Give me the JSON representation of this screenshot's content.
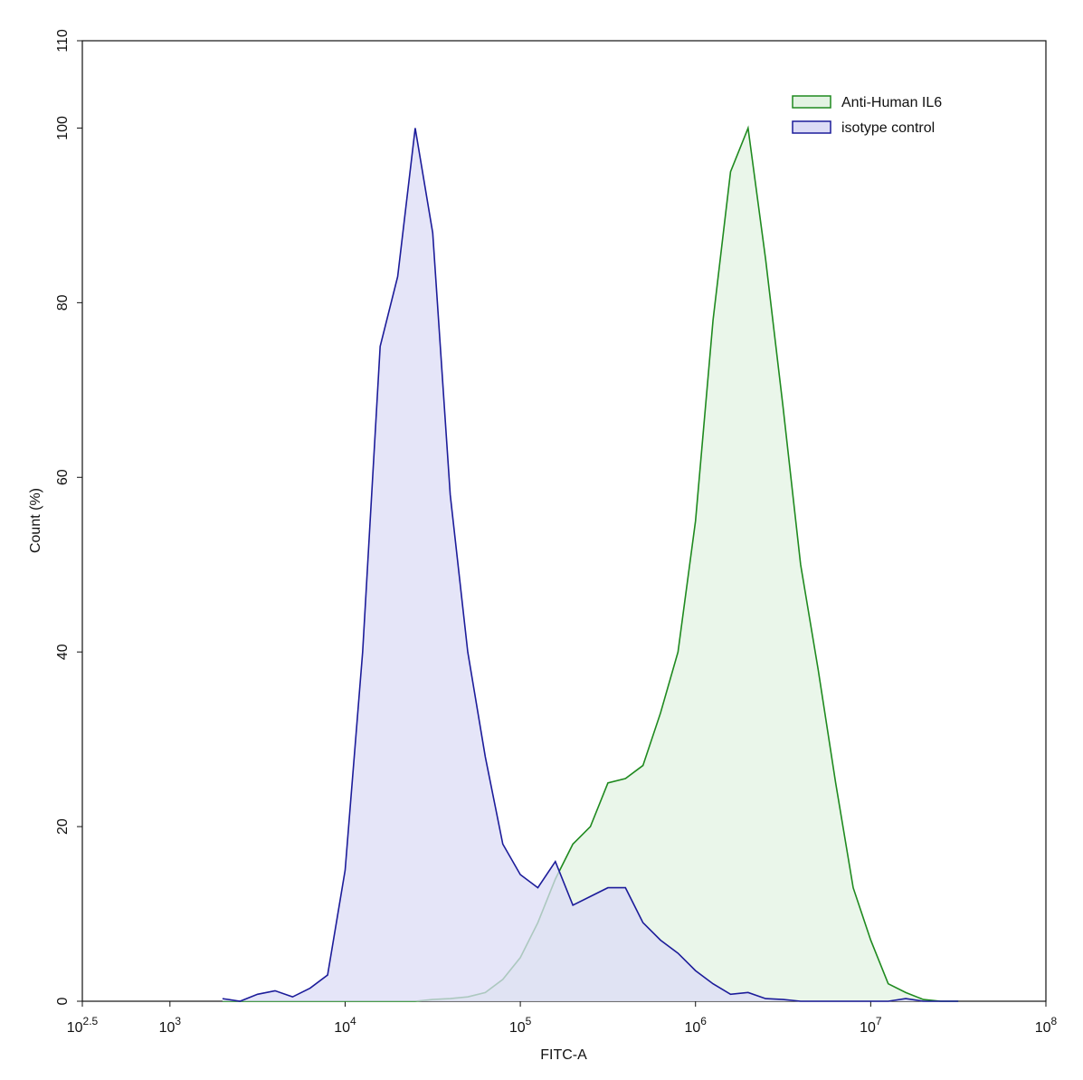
{
  "chart_data": {
    "type": "histogram-area",
    "xlabel": "FITC-A",
    "ylabel": "Count  (%)",
    "xscale": "log",
    "xlim": [
      316.23,
      100000000
    ],
    "xticks": [
      {
        "value": 316.23,
        "label": "10",
        "exponent": "2.5"
      },
      {
        "value": 1000,
        "label": "10",
        "exponent": "3"
      },
      {
        "value": 10000,
        "label": "10",
        "exponent": "4"
      },
      {
        "value": 100000,
        "label": "10",
        "exponent": "5"
      },
      {
        "value": 1000000,
        "label": "10",
        "exponent": "6"
      },
      {
        "value": 10000000,
        "label": "10",
        "exponent": "7"
      },
      {
        "value": 100000000,
        "label": "10",
        "exponent": "8"
      }
    ],
    "ylim": [
      0,
      110
    ],
    "yticks": [
      0,
      20,
      40,
      60,
      80,
      100,
      110
    ],
    "grid": false,
    "legend": "upper right",
    "x": [
      1995,
      2512,
      3162,
      3981,
      5012,
      6310,
      7943,
      10000,
      12589,
      15849,
      19953,
      25119,
      31623,
      39811,
      50119,
      63096,
      79433,
      100000,
      125893,
      158489,
      199526,
      251189,
      316228,
      398107,
      501187,
      630957,
      794328,
      1000000,
      1258925,
      1584893,
      1995262,
      2511886,
      3162278,
      3981072,
      5011872,
      6309573,
      7943282,
      10000000,
      12589254,
      15848932,
      19952623,
      25118864,
      31622777
    ],
    "series": [
      {
        "name": "Anti-Human IL6",
        "color": "#1f8a1f",
        "fill": "#e3f3e3",
        "values": [
          0,
          0,
          0,
          0,
          0,
          0,
          0,
          0,
          0,
          0,
          0,
          0,
          0.2,
          0.3,
          0.5,
          1,
          2.5,
          5,
          9,
          14,
          18,
          20,
          25,
          25.5,
          27,
          33,
          40,
          55,
          78,
          95,
          100,
          85,
          68,
          50,
          38,
          25,
          13,
          7,
          2,
          1,
          0.2,
          0,
          0
        ]
      },
      {
        "name": "isotype control",
        "color": "#1c1c9a",
        "fill": "#dcdcf6",
        "values": [
          0.3,
          0,
          0.8,
          1.2,
          0.5,
          1.5,
          3,
          15,
          40,
          75,
          83,
          100,
          88,
          58,
          40,
          28,
          18,
          14.5,
          13,
          16,
          11,
          12,
          13,
          13,
          9,
          7,
          5.5,
          3.5,
          2,
          0.8,
          1,
          0.3,
          0.2,
          0,
          0,
          0,
          0,
          0,
          0,
          0.3,
          0,
          0,
          0
        ]
      }
    ]
  }
}
